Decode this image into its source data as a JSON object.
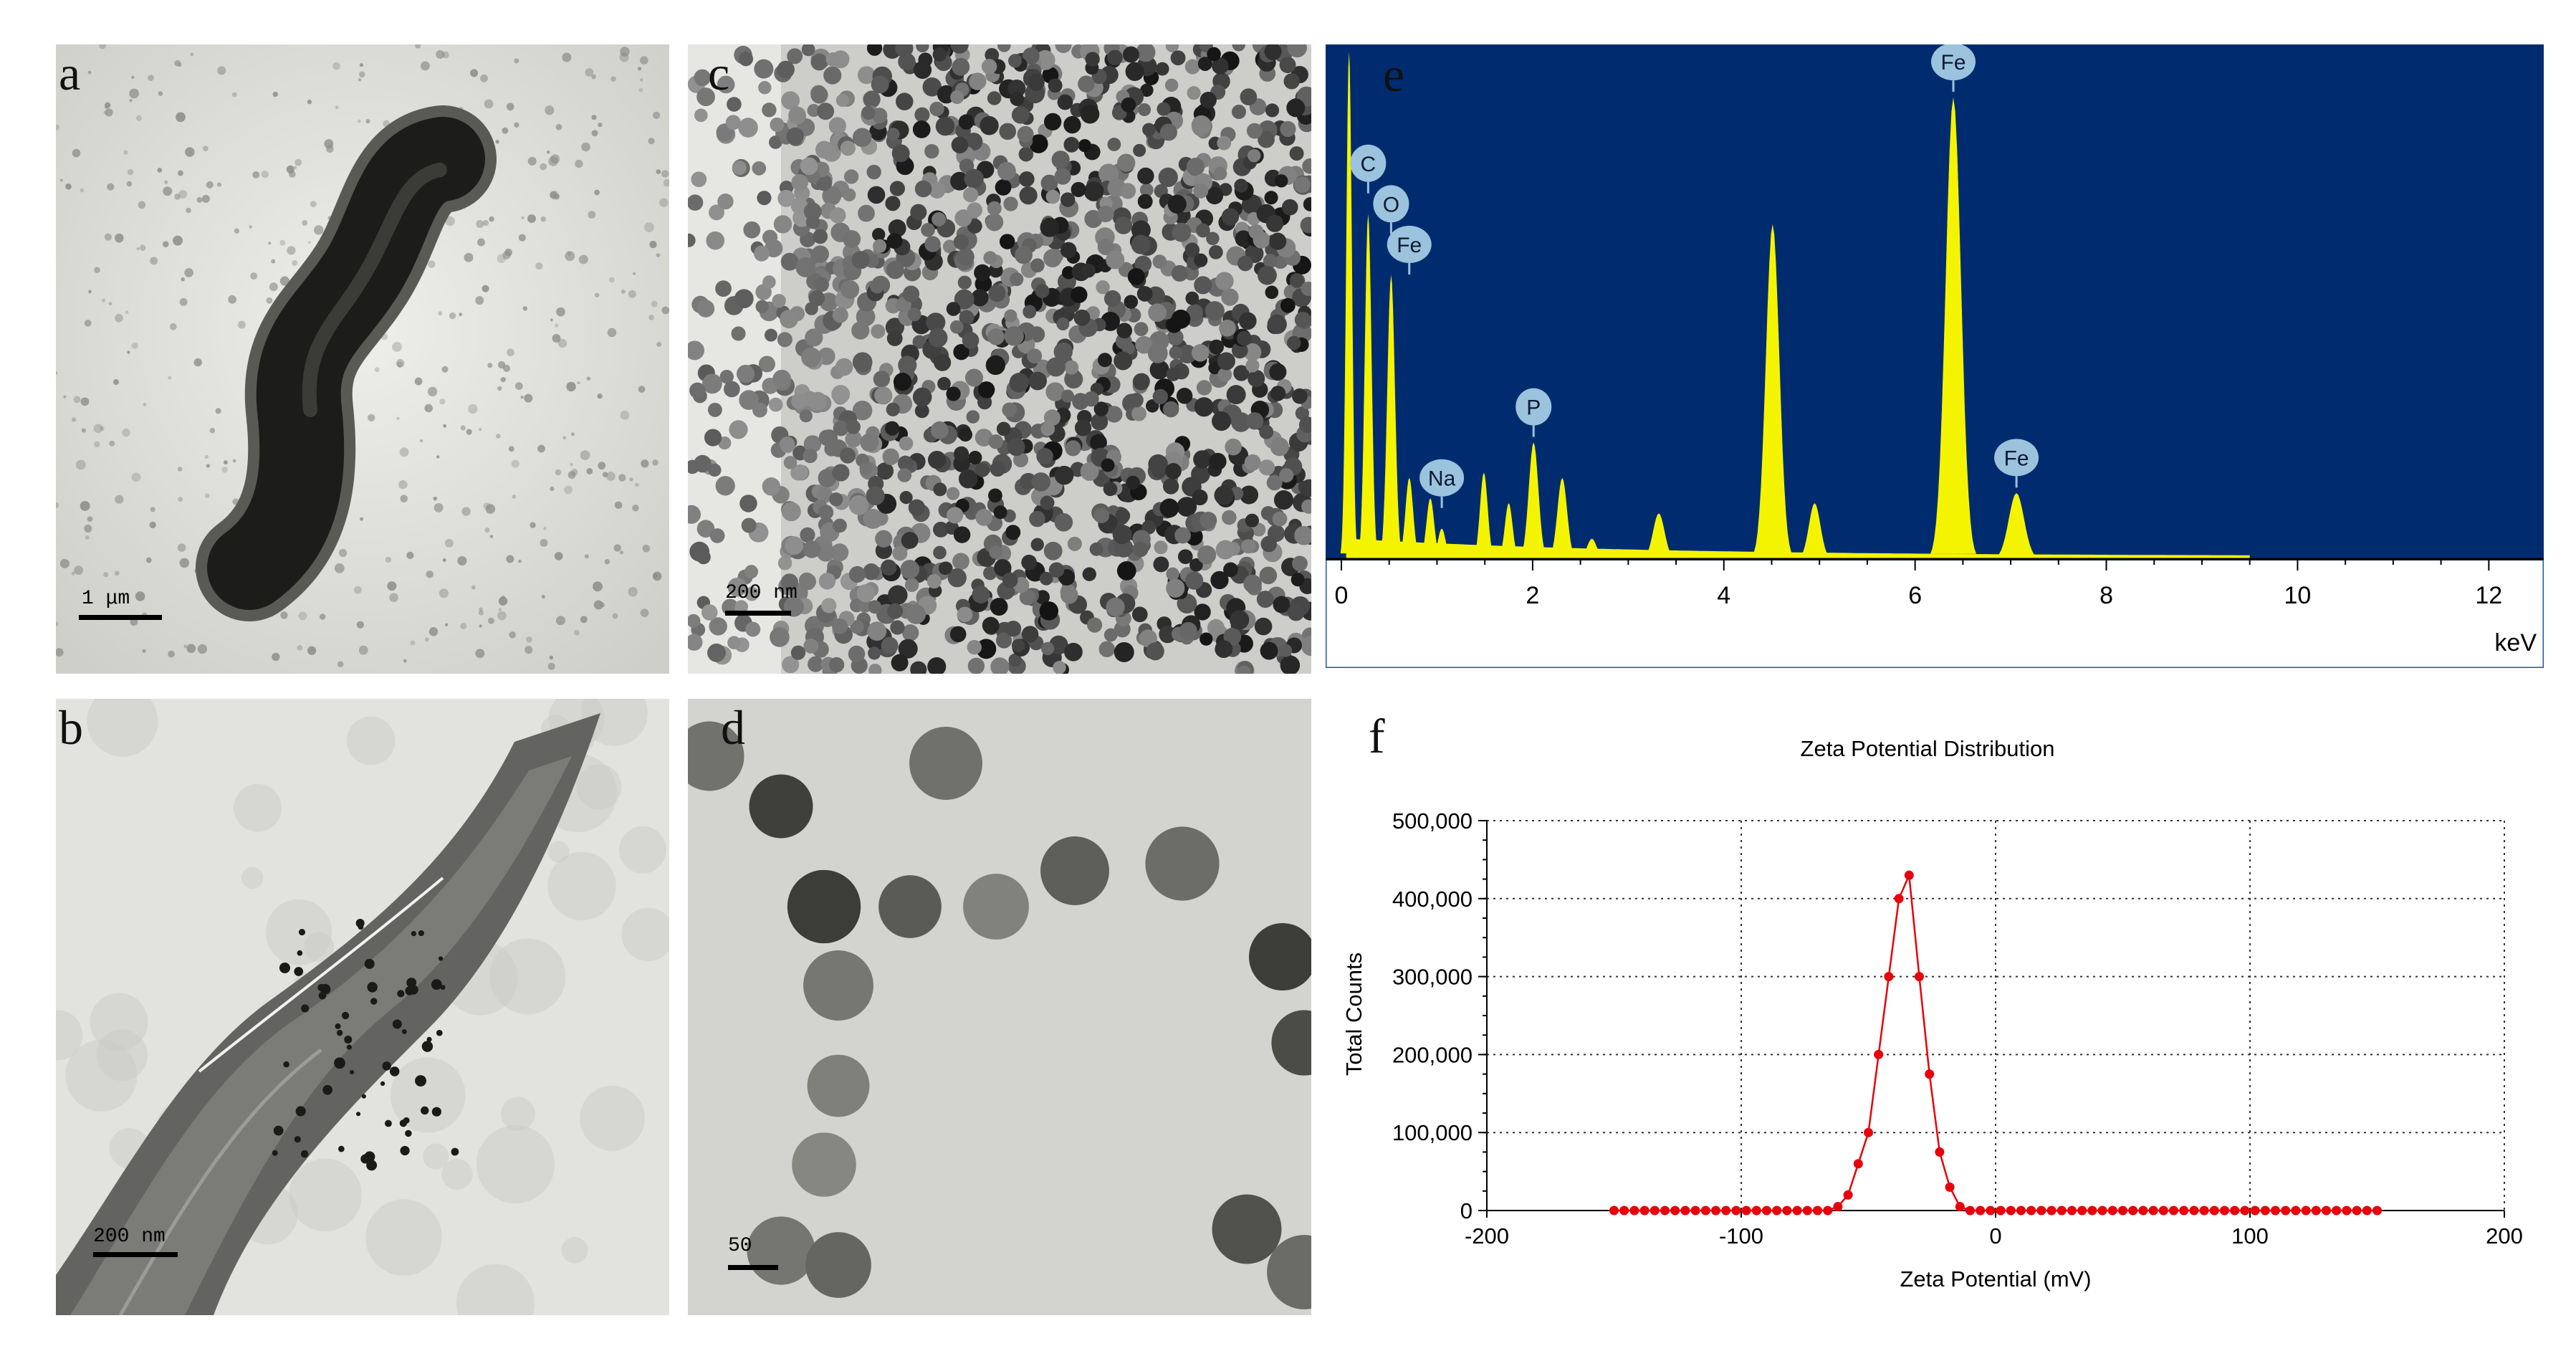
{
  "panels": {
    "a": {
      "label": "a",
      "scale": "1 μm"
    },
    "b": {
      "label": "b",
      "scale": "200 nm"
    },
    "c": {
      "label": "c",
      "scale": "200 nm"
    },
    "d": {
      "label": "d",
      "scale": "50"
    },
    "e": {
      "label": "e"
    },
    "f": {
      "label": "f"
    }
  },
  "chart_data": [
    {
      "type": "line",
      "panel": "e",
      "title": "",
      "xlabel": "keV",
      "ylabel": "",
      "xlim": [
        0,
        12.2
      ],
      "x_ticks": [
        0,
        2,
        4,
        6,
        8,
        10,
        12
      ],
      "background": "#002c6f",
      "fill": "#f4f400",
      "peaks": [
        {
          "x": 0.08,
          "h": 1.0,
          "w": 0.03
        },
        {
          "x": 0.28,
          "h": 0.68,
          "w": 0.035
        },
        {
          "x": 0.52,
          "h": 0.56,
          "w": 0.04
        },
        {
          "x": 0.71,
          "h": 0.16,
          "w": 0.04
        },
        {
          "x": 0.93,
          "h": 0.12,
          "w": 0.04
        },
        {
          "x": 1.05,
          "h": 0.06,
          "w": 0.04
        },
        {
          "x": 1.49,
          "h": 0.17,
          "w": 0.04
        },
        {
          "x": 1.75,
          "h": 0.11,
          "w": 0.04
        },
        {
          "x": 2.01,
          "h": 0.23,
          "w": 0.05
        },
        {
          "x": 2.31,
          "h": 0.16,
          "w": 0.05
        },
        {
          "x": 2.62,
          "h": 0.04,
          "w": 0.05
        },
        {
          "x": 3.32,
          "h": 0.09,
          "w": 0.06
        },
        {
          "x": 4.51,
          "h": 0.66,
          "w": 0.07
        },
        {
          "x": 4.95,
          "h": 0.11,
          "w": 0.06
        },
        {
          "x": 6.4,
          "h": 0.91,
          "w": 0.08
        },
        {
          "x": 7.06,
          "h": 0.13,
          "w": 0.08
        }
      ],
      "annotations": [
        {
          "text": "C",
          "x": 0.28,
          "h": 0.78
        },
        {
          "text": "O",
          "x": 0.52,
          "h": 0.7
        },
        {
          "text": "Fe",
          "x": 0.71,
          "h": 0.62
        },
        {
          "text": "Na",
          "x": 1.05,
          "h": 0.16
        },
        {
          "text": "P",
          "x": 2.01,
          "h": 0.3
        },
        {
          "text": "Fe",
          "x": 6.4,
          "h": 0.98
        },
        {
          "text": "Fe",
          "x": 7.06,
          "h": 0.2
        }
      ]
    },
    {
      "type": "line",
      "panel": "f",
      "title": "Zeta Potential Distribution",
      "xlabel": "Zeta Potential (mV)",
      "ylabel": "Total Counts",
      "xlim": [
        -200,
        200
      ],
      "ylim": [
        0,
        500000
      ],
      "x_ticks": [
        -200,
        -100,
        0,
        100,
        200
      ],
      "y_ticks": [
        0,
        100000,
        200000,
        300000,
        400000,
        500000
      ],
      "x_tick_labels": [
        "-200",
        "-100",
        "0",
        "100",
        "200"
      ],
      "y_tick_labels": [
        "0",
        "100,000",
        "200,000",
        "300,000",
        "400,000",
        "500,000"
      ],
      "grid": true,
      "color": "#e8000b",
      "x": [
        -150,
        -146,
        -142,
        -138,
        -134,
        -130,
        -126,
        -122,
        -118,
        -114,
        -110,
        -106,
        -102,
        -98,
        -94,
        -90,
        -86,
        -82,
        -78,
        -74,
        -70,
        -66,
        -62,
        -58,
        -54,
        -50,
        -46,
        -42,
        -38,
        -34,
        -30,
        -26,
        -22,
        -18,
        -14,
        -10,
        -6,
        -2,
        2,
        6,
        10,
        14,
        18,
        22,
        26,
        30,
        34,
        38,
        42,
        46,
        50,
        54,
        58,
        62,
        66,
        70,
        74,
        78,
        82,
        86,
        90,
        94,
        98,
        102,
        106,
        110,
        114,
        118,
        122,
        126,
        130,
        134,
        138,
        142,
        146,
        150
      ],
      "y": [
        0,
        0,
        0,
        0,
        0,
        0,
        0,
        0,
        0,
        0,
        0,
        0,
        0,
        0,
        0,
        0,
        0,
        0,
        0,
        0,
        0,
        0,
        5000,
        20000,
        60000,
        100000,
        200000,
        300000,
        400000,
        430000,
        300000,
        175000,
        75000,
        30000,
        5000,
        0,
        0,
        0,
        0,
        0,
        0,
        0,
        0,
        0,
        0,
        0,
        0,
        0,
        0,
        0,
        0,
        0,
        0,
        0,
        0,
        0,
        0,
        0,
        0,
        0,
        0,
        0,
        0,
        0,
        0,
        0,
        0,
        0,
        0,
        0,
        0,
        0,
        0,
        0,
        0,
        0
      ]
    }
  ]
}
